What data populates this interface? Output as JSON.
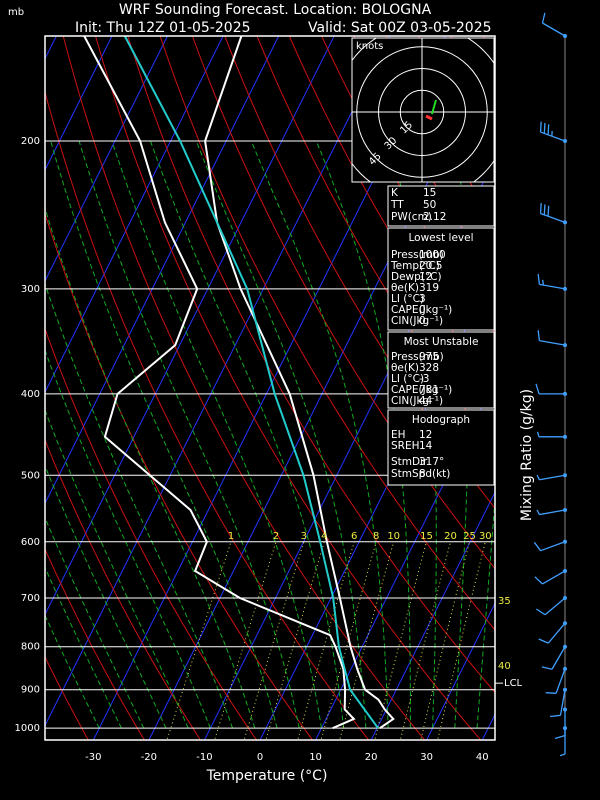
{
  "chart_data": {
    "type": "skew-t",
    "title": "WRF Sounding Forecast. Location: BOLOGNA",
    "init": "Init: Thu 12Z 01-05-2025",
    "valid": "Valid: Sat 00Z 03-05-2025",
    "y_unit": "mb",
    "xlabel": "Temperature (°C)",
    "mixing_ratio_label": "Mixing Ratio (g/kg)",
    "log_y": true,
    "xlim": [
      -38.7,
      42.3
    ],
    "ylim": [
      1033,
      150
    ],
    "xticks": [
      -30,
      -20,
      -10,
      0,
      10,
      20,
      30,
      40
    ],
    "yticks": [
      200,
      300,
      400,
      500,
      600,
      700,
      800,
      900,
      1000
    ],
    "mixing_ratio": [
      1,
      2,
      3,
      4,
      6,
      8,
      10,
      15,
      20,
      25,
      30
    ],
    "moist_adiabat_labels": [
      35,
      40
    ],
    "lcl_label": "LCL",
    "lcl_pressure": 884,
    "series": [
      {
        "color": "#ffffff",
        "pressure": [
          1000,
          975,
          950,
          925,
          900,
          850,
          800,
          700,
          600,
          500,
          400,
          300,
          250,
          200,
          150
        ],
        "values": [
          20.5,
          22.1,
          19.7,
          17.7,
          14.4,
          11.1,
          7.9,
          1.6,
          -5.8,
          -14.2,
          -25.8,
          -44.1,
          -54.3,
          -63.8,
          -66.7
        ]
      },
      {
        "color": "#ffffff",
        "pressure": [
          1000,
          975,
          950,
          900,
          850,
          800,
          775,
          700,
          650,
          600,
          550,
          450,
          400,
          350,
          300,
          250,
          200,
          150
        ],
        "values": [
          12,
          15,
          12.5,
          10.8,
          8.6,
          5.2,
          3.2,
          -16.4,
          -26.9,
          -27.4,
          -33.2,
          -55.2,
          -56.8,
          -50.8,
          -51.9,
          -63.7,
          -75.5,
          -95
        ]
      },
      {
        "color": "#22cccc",
        "pressure": [
          1000,
          900,
          800,
          700,
          600,
          500,
          400,
          300,
          200,
          150
        ],
        "values": [
          20.2,
          11.7,
          5.8,
          0.4,
          -7.0,
          -16.0,
          -28.5,
          -42.9,
          -68.3,
          -87.7
        ]
      }
    ],
    "winds": {
      "color": "#3f9fff",
      "pressure": [
        150,
        200,
        250,
        300,
        350,
        400,
        450,
        500,
        550,
        600,
        650,
        700,
        750,
        800,
        850,
        900,
        950,
        1000
      ],
      "speed": [
        10,
        35,
        30,
        15,
        10,
        10,
        5,
        5,
        5,
        10,
        10,
        10,
        10,
        10,
        10,
        10,
        10,
        5
      ],
      "direction": [
        300,
        290,
        290,
        280,
        280,
        270,
        270,
        260,
        260,
        250,
        240,
        230,
        220,
        210,
        200,
        190,
        180,
        180
      ]
    },
    "hodograph": {
      "unit": "knots",
      "rings": [
        15,
        30,
        45
      ]
    },
    "indices": {
      "rows": [
        [
          "K",
          15
        ],
        [
          "TT",
          50
        ],
        [
          "PW(cm)",
          2.12
        ]
      ]
    },
    "lowest_level": {
      "title": "Lowest level",
      "rows": [
        [
          "Press(mb)",
          1000
        ],
        [
          "Temp(°C)",
          20.5
        ],
        [
          "Dewp(°C)",
          12
        ],
        [
          "θe(K)",
          319
        ],
        [
          "LI (°C)",
          3
        ],
        [
          "CAPE(Jkg⁻¹)",
          0
        ],
        [
          "CIN(Jkg⁻¹)",
          0
        ]
      ]
    },
    "most_unstable": {
      "title": "Most Unstable",
      "rows": [
        [
          "Press(mb)",
          975
        ],
        [
          "θe(K)",
          328
        ],
        [
          "LI (°C)",
          -3
        ],
        [
          "CAPE(Jkg⁻¹)",
          781
        ],
        [
          "CIN(Jkg⁻¹)",
          44
        ]
      ]
    },
    "hodograph_table": {
      "title": "Hodograph",
      "rows": [
        [
          "EH",
          12
        ],
        [
          "SREH",
          14
        ],
        [
          "StmDir",
          "317°"
        ],
        [
          "StmSpd(kt)",
          8
        ]
      ]
    }
  }
}
